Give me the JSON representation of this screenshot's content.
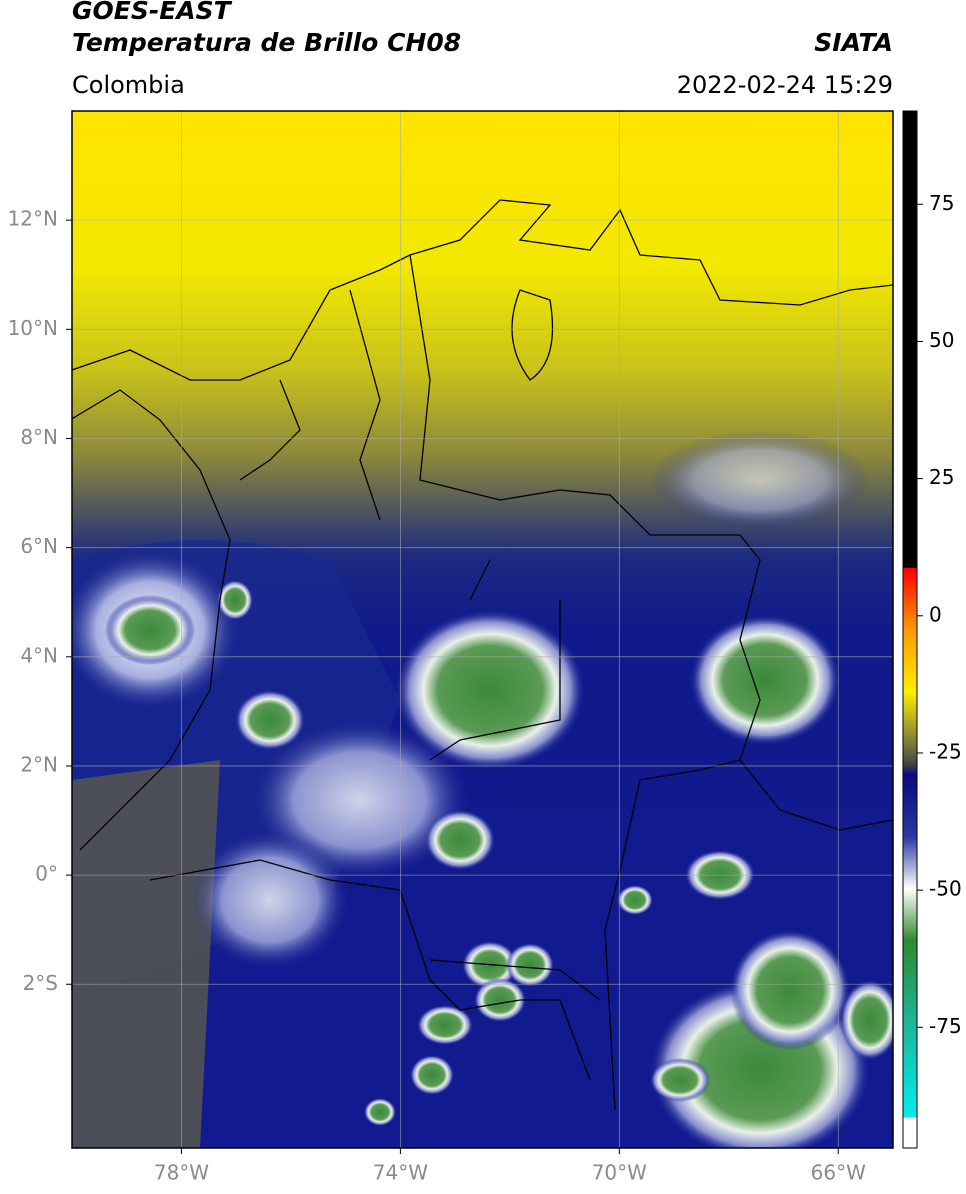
{
  "header": {
    "title_line1": "GOES-EAST",
    "title_line2": "Temperatura de Brillo CH08",
    "region": "Colombia",
    "source": "SIATA",
    "timestamp": "2022-02-24 15:29"
  },
  "map": {
    "xlim": [
      -80,
      -65
    ],
    "ylim": [
      -5,
      14
    ],
    "xticks": [
      {
        "value": -78,
        "label": "78°W"
      },
      {
        "value": -74,
        "label": "74°W"
      },
      {
        "value": -70,
        "label": "70°W"
      },
      {
        "value": -66,
        "label": "66°W"
      }
    ],
    "yticks": [
      {
        "value": 12,
        "label": "12°N"
      },
      {
        "value": 10,
        "label": "10°N"
      },
      {
        "value": 8,
        "label": "8°N"
      },
      {
        "value": 6,
        "label": "6°N"
      },
      {
        "value": 4,
        "label": "4°N"
      },
      {
        "value": 2,
        "label": "2°N"
      },
      {
        "value": 0,
        "label": "0°"
      },
      {
        "value": -2,
        "label": "2°S"
      }
    ],
    "grid": true
  },
  "colorbar": {
    "lim": [
      -97,
      92
    ],
    "ticks": [
      75,
      50,
      25,
      0,
      -25,
      -50,
      -75
    ]
  }
}
